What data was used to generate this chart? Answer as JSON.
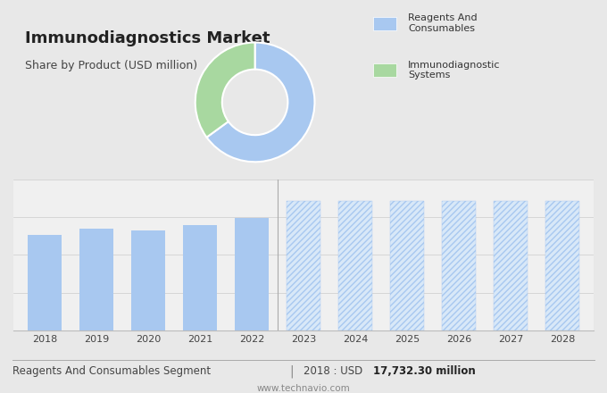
{
  "title": "Immunodiagnostics Market",
  "subtitle": "Share by Product (USD million)",
  "pie_values": [
    65,
    35
  ],
  "pie_colors": [
    "#a8c8f0",
    "#a8d8a0"
  ],
  "pie_labels": [
    "Reagents And\nConsumables",
    "Immunodiagnostic\nSystems"
  ],
  "bar_years_historical": [
    2018,
    2019,
    2020,
    2021,
    2022
  ],
  "bar_values_historical": [
    17732,
    18900,
    18500,
    19500,
    20800
  ],
  "bar_years_forecast": [
    2023,
    2024,
    2025,
    2026,
    2027,
    2028
  ],
  "bar_color_historical": "#a8c8f0",
  "bar_color_forecast": "#a8c8f0",
  "footer_segment": "Reagents And Consumables Segment",
  "footer_year": "2018 : USD",
  "footer_value": "17,732.30 million",
  "footer_website": "www.technavio.com",
  "bg_color_top": "#dcdcdc",
  "bg_color_bottom": "#f0f0f0",
  "grid_color": "#cccccc",
  "ylim_min": 0,
  "ylim_max": 28000,
  "forecast_bar_height": 24000
}
